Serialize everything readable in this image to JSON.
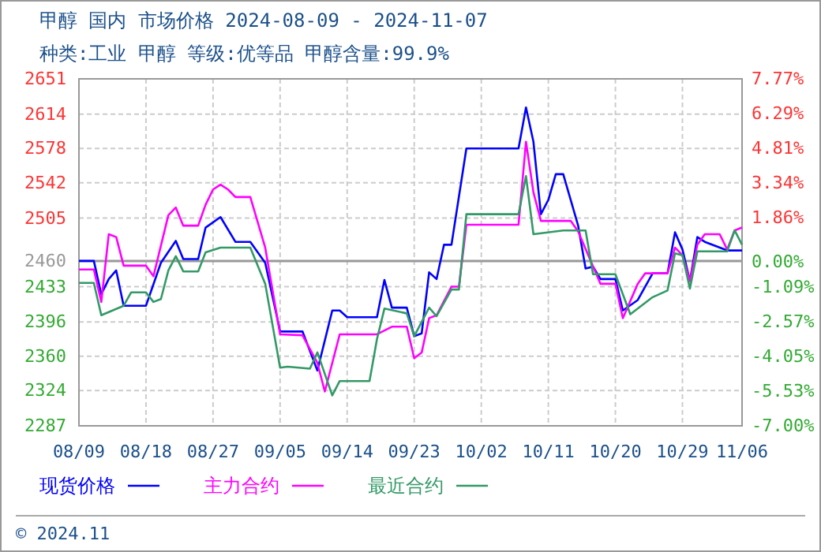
{
  "chart_data": {
    "type": "line",
    "title": "甲醇 国内 市场价格 2024-08-09 - 2024-11-07",
    "subtitle": "种类:工业 甲醇 等级:优等品 甲醇含量:99.9%",
    "annotations": [
      "© 2024.11"
    ],
    "xlim": [
      "2024-08-09",
      "2024-11-06"
    ],
    "xticks": [
      {
        "value": "2024-08-09",
        "label": "08/09"
      },
      {
        "value": "2024-08-18",
        "label": "08/18"
      },
      {
        "value": "2024-08-27",
        "label": "08/27"
      },
      {
        "value": "2024-09-05",
        "label": "09/05"
      },
      {
        "value": "2024-09-14",
        "label": "09/14"
      },
      {
        "value": "2024-09-23",
        "label": "09/23"
      },
      {
        "value": "2024-10-02",
        "label": "10/02"
      },
      {
        "value": "2024-10-11",
        "label": "10/11"
      },
      {
        "value": "2024-10-20",
        "label": "10/20"
      },
      {
        "value": "2024-10-29",
        "label": "10/29"
      },
      {
        "value": "2024-11-06",
        "label": "11/06"
      }
    ],
    "ylim": [
      2287,
      2651
    ],
    "yticks": [
      2287,
      2324,
      2360,
      2396,
      2433,
      2460,
      2505,
      2542,
      2578,
      2614,
      2651
    ],
    "y2lim": [
      -7.0,
      7.77
    ],
    "y2ticks": [
      {
        "value": -7.0,
        "label": "-7.00%"
      },
      {
        "value": -5.53,
        "label": "-5.53%"
      },
      {
        "value": -4.05,
        "label": "-4.05%"
      },
      {
        "value": -2.57,
        "label": "-2.57%"
      },
      {
        "value": -1.09,
        "label": "-1.09%"
      },
      {
        "value": 0,
        "label": "0.00%"
      },
      {
        "value": 1.86,
        "label": "1.86%"
      },
      {
        "value": 3.34,
        "label": "3.34%"
      },
      {
        "value": 4.81,
        "label": "4.81%"
      },
      {
        "value": 6.29,
        "label": "6.29%"
      },
      {
        "value": 7.77,
        "label": "7.77%"
      }
    ],
    "ref_lines": [
      {
        "axis": "y",
        "value": 2460,
        "color": "#999999"
      }
    ],
    "grid": true,
    "legend": "bottom",
    "marker": "none",
    "line_style": "solid",
    "series": [
      {
        "name": "现货价格",
        "color": "#0000ff",
        "x": [
          "2024-08-09",
          "2024-08-11",
          "2024-08-12",
          "2024-08-13",
          "2024-08-14",
          "2024-08-15",
          "2024-08-18",
          "2024-08-20",
          "2024-08-22",
          "2024-08-23",
          "2024-08-25",
          "2024-08-26",
          "2024-08-28",
          "2024-08-30",
          "2024-09-01",
          "2024-09-03",
          "2024-09-05",
          "2024-09-08",
          "2024-09-10",
          "2024-09-12",
          "2024-09-13",
          "2024-09-14",
          "2024-09-18",
          "2024-09-19",
          "2024-09-20",
          "2024-09-22",
          "2024-09-23",
          "2024-09-24",
          "2024-09-25",
          "2024-09-26",
          "2024-09-27",
          "2024-09-28",
          "2024-09-30",
          "2024-10-07",
          "2024-10-08",
          "2024-10-09",
          "2024-10-10",
          "2024-10-11",
          "2024-10-12",
          "2024-10-13",
          "2024-10-15",
          "2024-10-16",
          "2024-10-17",
          "2024-10-18",
          "2024-10-20",
          "2024-10-21",
          "2024-10-23",
          "2024-10-25",
          "2024-10-27",
          "2024-10-28",
          "2024-10-29",
          "2024-10-30",
          "2024-10-31",
          "2024-11-01",
          "2024-11-04",
          "2024-11-06"
        ],
        "values": [
          2460,
          2460,
          2425,
          2441,
          2450,
          2413,
          2413,
          2458,
          2481,
          2462,
          2462,
          2495,
          2506,
          2480,
          2480,
          2458,
          2386,
          2386,
          2345,
          2408,
          2408,
          2401,
          2401,
          2440,
          2411,
          2411,
          2381,
          2384,
          2448,
          2441,
          2477,
          2477,
          2578,
          2578,
          2621,
          2585,
          2509,
          2524,
          2551,
          2551,
          2497,
          2452,
          2454,
          2441,
          2441,
          2408,
          2419,
          2447,
          2447,
          2490,
          2472,
          2439,
          2485,
          2480,
          2471,
          2471
        ]
      },
      {
        "name": "主力合约",
        "color": "#ff00ff",
        "x": [
          "2024-08-09",
          "2024-08-11",
          "2024-08-12",
          "2024-08-13",
          "2024-08-14",
          "2024-08-15",
          "2024-08-18",
          "2024-08-19",
          "2024-08-21",
          "2024-08-22",
          "2024-08-23",
          "2024-08-25",
          "2024-08-26",
          "2024-08-27",
          "2024-08-28",
          "2024-08-29",
          "2024-08-30",
          "2024-09-01",
          "2024-09-03",
          "2024-09-05",
          "2024-09-08",
          "2024-09-10",
          "2024-09-11",
          "2024-09-13",
          "2024-09-18",
          "2024-09-20",
          "2024-09-22",
          "2024-09-23",
          "2024-09-24",
          "2024-09-25",
          "2024-09-26",
          "2024-09-28",
          "2024-09-29",
          "2024-09-30",
          "2024-10-07",
          "2024-10-08",
          "2024-10-09",
          "2024-10-10",
          "2024-10-14",
          "2024-10-15",
          "2024-10-18",
          "2024-10-20",
          "2024-10-21",
          "2024-10-23",
          "2024-10-24",
          "2024-10-27",
          "2024-10-28",
          "2024-10-29",
          "2024-10-30",
          "2024-10-31",
          "2024-11-01",
          "2024-11-03",
          "2024-11-04",
          "2024-11-05",
          "2024-11-06"
        ],
        "values": [
          2451,
          2451,
          2417,
          2488,
          2485,
          2455,
          2455,
          2444,
          2508,
          2516,
          2497,
          2497,
          2519,
          2535,
          2540,
          2535,
          2527,
          2527,
          2474,
          2383,
          2382,
          2353,
          2323,
          2383,
          2383,
          2391,
          2391,
          2358,
          2364,
          2400,
          2403,
          2433,
          2433,
          2498,
          2498,
          2585,
          2532,
          2502,
          2502,
          2491,
          2436,
          2436,
          2400,
          2436,
          2447,
          2447,
          2474,
          2466,
          2439,
          2477,
          2488,
          2488,
          2472,
          2492,
          2495
        ]
      },
      {
        "name": "最近合约",
        "color": "#339966",
        "x": [
          "2024-08-09",
          "2024-08-11",
          "2024-08-12",
          "2024-08-15",
          "2024-08-16",
          "2024-08-18",
          "2024-08-19",
          "2024-08-20",
          "2024-08-21",
          "2024-08-22",
          "2024-08-23",
          "2024-08-25",
          "2024-08-26",
          "2024-08-28",
          "2024-09-01",
          "2024-09-03",
          "2024-09-05",
          "2024-09-06",
          "2024-09-09",
          "2024-09-10",
          "2024-09-12",
          "2024-09-13",
          "2024-09-17",
          "2024-09-18",
          "2024-09-19",
          "2024-09-22",
          "2024-09-23",
          "2024-09-25",
          "2024-09-26",
          "2024-09-28",
          "2024-09-29",
          "2024-09-30",
          "2024-10-07",
          "2024-10-08",
          "2024-10-09",
          "2024-10-13",
          "2024-10-16",
          "2024-10-17",
          "2024-10-20",
          "2024-10-22",
          "2024-10-25",
          "2024-10-27",
          "2024-10-28",
          "2024-10-29",
          "2024-10-30",
          "2024-10-31",
          "2024-11-04",
          "2024-11-05",
          "2024-11-06"
        ],
        "values": [
          2437,
          2437,
          2403,
          2413,
          2427,
          2427,
          2417,
          2420,
          2450,
          2465,
          2449,
          2449,
          2469,
          2474,
          2474,
          2436,
          2348,
          2349,
          2347,
          2364,
          2319,
          2334,
          2334,
          2378,
          2410,
          2405,
          2381,
          2411,
          2402,
          2430,
          2430,
          2509,
          2509,
          2549,
          2488,
          2492,
          2492,
          2446,
          2446,
          2404,
          2422,
          2429,
          2468,
          2466,
          2431,
          2470,
          2470,
          2492,
          2477
        ]
      }
    ]
  }
}
